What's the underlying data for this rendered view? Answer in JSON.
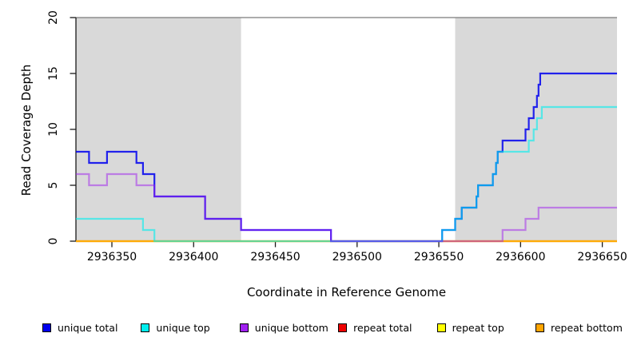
{
  "chart_data": {
    "type": "line",
    "subtype": "step-coverage",
    "title": "",
    "xlabel": "Coordinate in Reference Genome",
    "ylabel": "Read Coverage Depth",
    "xlim": [
      2936328,
      2936659
    ],
    "ylim": [
      0,
      20
    ],
    "x_ticks": [
      2936350,
      2936400,
      2936450,
      2936500,
      2936550,
      2936600,
      2936650
    ],
    "y_ticks": [
      0,
      5,
      10,
      15,
      20
    ],
    "grid": false,
    "legend_position": "bottom",
    "step_style": "post",
    "shade_color": "#d9d9d9",
    "top_border_color": "#7a7a7a",
    "axis_color": "#1a1a1a",
    "shaded_regions": [
      {
        "x0": 2936328,
        "x1": 2936429
      },
      {
        "x0": 2936560,
        "x1": 2936659
      }
    ],
    "series": [
      {
        "name": "repeat total",
        "color": "#EE0000",
        "opacity": 0.55,
        "points": [
          [
            2936328,
            0
          ]
        ]
      },
      {
        "name": "repeat top",
        "color": "#FFFF00",
        "opacity": 0.6,
        "points": [
          [
            2936328,
            0
          ]
        ]
      },
      {
        "name": "repeat bottom",
        "color": "#FFA500",
        "opacity": 0.8,
        "points": [
          [
            2936328,
            0
          ]
        ]
      },
      {
        "name": "unique total",
        "color": "#0000EE",
        "opacity": 0.85,
        "points": [
          [
            2936328,
            8
          ],
          [
            2936336,
            7
          ],
          [
            2936347,
            8
          ],
          [
            2936365,
            7
          ],
          [
            2936369,
            6
          ],
          [
            2936376,
            4
          ],
          [
            2936407,
            2
          ],
          [
            2936429,
            1
          ],
          [
            2936484,
            0
          ],
          [
            2936552,
            1
          ],
          [
            2936560,
            2
          ],
          [
            2936564,
            3
          ],
          [
            2936573,
            4
          ],
          [
            2936574,
            5
          ],
          [
            2936583,
            6
          ],
          [
            2936585,
            7
          ],
          [
            2936586,
            8
          ],
          [
            2936589,
            9
          ],
          [
            2936603,
            10
          ],
          [
            2936605,
            11
          ],
          [
            2936608,
            12
          ],
          [
            2936610,
            13
          ],
          [
            2936611,
            14
          ],
          [
            2936612,
            15
          ]
        ]
      },
      {
        "name": "unique top",
        "color": "#00EEEE",
        "opacity": 0.6,
        "points": [
          [
            2936328,
            2
          ],
          [
            2936369,
            1
          ],
          [
            2936376,
            0
          ],
          [
            2936552,
            1
          ],
          [
            2936560,
            2
          ],
          [
            2936564,
            3
          ],
          [
            2936573,
            4
          ],
          [
            2936574,
            5
          ],
          [
            2936583,
            6
          ],
          [
            2936585,
            7
          ],
          [
            2936586,
            8
          ],
          [
            2936605,
            9
          ],
          [
            2936608,
            10
          ],
          [
            2936610,
            11
          ],
          [
            2936613,
            12
          ]
        ]
      },
      {
        "name": "unique bottom",
        "color": "#A020F0",
        "opacity": 0.5,
        "points": [
          [
            2936328,
            6
          ],
          [
            2936336,
            5
          ],
          [
            2936347,
            6
          ],
          [
            2936365,
            5
          ],
          [
            2936376,
            4
          ],
          [
            2936407,
            2
          ],
          [
            2936429,
            1
          ],
          [
            2936484,
            0
          ],
          [
            2936589,
            1
          ],
          [
            2936603,
            2
          ],
          [
            2936611,
            3
          ]
        ]
      }
    ],
    "legend": [
      {
        "label": "unique total",
        "color": "#0000EE"
      },
      {
        "label": "unique top",
        "color": "#00EEEE"
      },
      {
        "label": "unique bottom",
        "color": "#A020F0"
      },
      {
        "label": "repeat total",
        "color": "#EE0000"
      },
      {
        "label": "repeat top",
        "color": "#FFFF00"
      },
      {
        "label": "repeat bottom",
        "color": "#FFA500"
      }
    ]
  }
}
